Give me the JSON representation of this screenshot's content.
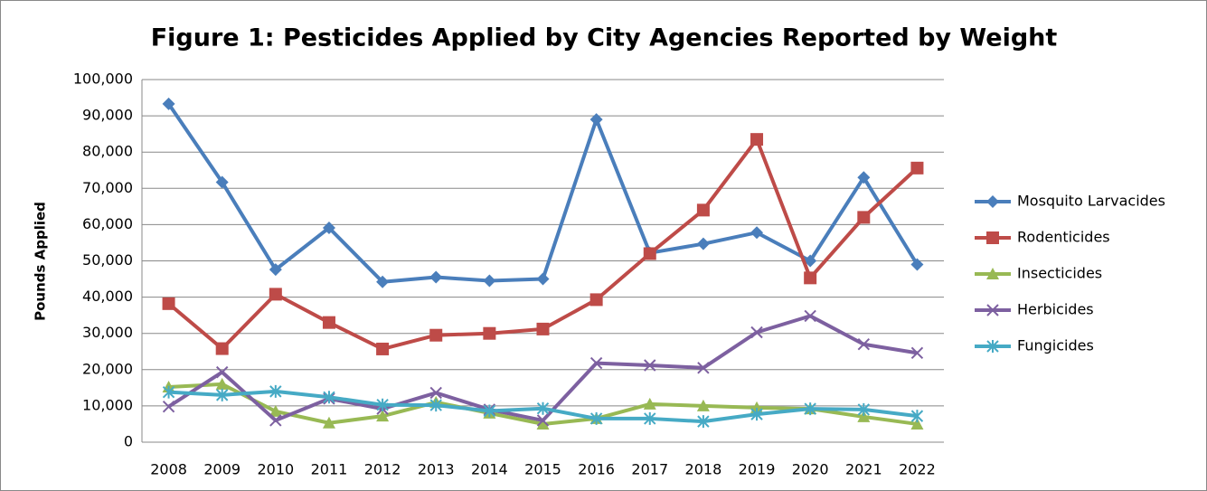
{
  "chart_data": {
    "type": "line",
    "title": "Figure 1: Pesticides Applied by City Agencies Reported by Weight",
    "y_label": "Pounds Applied",
    "categories": [
      "2008",
      "2009",
      "2010",
      "2011",
      "2012",
      "2013",
      "2014",
      "2015",
      "2016",
      "2017",
      "2018",
      "2019",
      "2020",
      "2021",
      "2022"
    ],
    "series": [
      {
        "name": "Mosquito Larvacides",
        "color": "#4a7ebb",
        "marker": "diamond",
        "values": [
          93300,
          71700,
          47600,
          59100,
          44200,
          45500,
          44500,
          45000,
          89000,
          52200,
          54700,
          57800,
          50000,
          73000,
          49000
        ]
      },
      {
        "name": "Rodenticides",
        "color": "#be4b48",
        "marker": "square",
        "values": [
          38200,
          25800,
          40800,
          33000,
          25700,
          29500,
          30000,
          31200,
          39300,
          52000,
          64000,
          83500,
          45300,
          62000,
          75600
        ]
      },
      {
        "name": "Insecticides",
        "color": "#98b954",
        "marker": "triangle",
        "values": [
          15200,
          16000,
          8500,
          5300,
          7200,
          11000,
          8000,
          5000,
          6500,
          10500,
          10000,
          9500,
          9200,
          7000,
          5000
        ]
      },
      {
        "name": "Herbicides",
        "color": "#7d60a0",
        "marker": "x",
        "values": [
          9800,
          19300,
          6000,
          12000,
          9200,
          13600,
          9000,
          6000,
          21800,
          21200,
          20500,
          30300,
          34800,
          27000,
          24600
        ]
      },
      {
        "name": "Fungicides",
        "color": "#46aac5",
        "marker": "asterisk",
        "values": [
          13800,
          13000,
          14000,
          12400,
          10300,
          10200,
          8600,
          9300,
          6500,
          6500,
          5700,
          7700,
          9200,
          9000,
          7200
        ]
      }
    ],
    "ylim": [
      0,
      100000
    ],
    "yticks": [
      0,
      {
        "value": 10000,
        "label": "10,000"
      },
      {
        "value": 20000,
        "label": "20,000"
      },
      {
        "value": 30000,
        "label": "30,000"
      },
      {
        "value": 40000,
        "label": "40,000"
      },
      {
        "value": 50000,
        "label": "50,000"
      },
      {
        "value": 60000,
        "label": "60,000"
      },
      {
        "value": 70000,
        "label": "70,000"
      },
      {
        "value": 80000,
        "label": "80,000"
      },
      {
        "value": 90000,
        "label": "90,000"
      },
      {
        "value": 100000,
        "label": "100,000"
      }
    ],
    "grid": true,
    "legend": "right"
  }
}
